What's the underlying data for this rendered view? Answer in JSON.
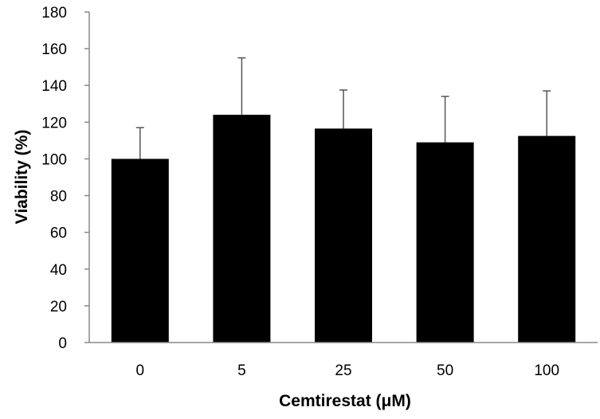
{
  "chart_data": {
    "type": "bar",
    "title": "",
    "xlabel": "Cemtirestat (μM)",
    "ylabel": "Viability (%)",
    "categories": [
      "0",
      "5",
      "25",
      "50",
      "100"
    ],
    "values": [
      100,
      124,
      116.5,
      109,
      112.5
    ],
    "error_upper": [
      117,
      155,
      137.5,
      134,
      137
    ],
    "ylim": [
      0,
      180
    ],
    "yticks": [
      "0",
      "20",
      "40",
      "60",
      "80",
      "100",
      "120",
      "140",
      "160",
      "180"
    ],
    "grid": false,
    "bar_color": "#000000",
    "error_bar_color": "#555555"
  }
}
